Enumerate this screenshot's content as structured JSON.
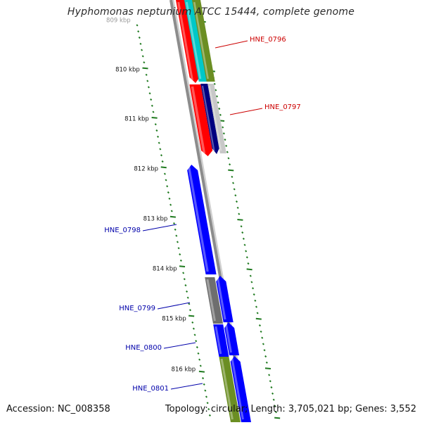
{
  "title": "Hyphomonas neptunium ATCC 15444, complete genome",
  "accession_text": "Accession: NC_008358",
  "summary_text": "Topology: circular; Length: 3,705,021 bp; Genes: 3,552",
  "colors": {
    "backbone": "#8c8c8c",
    "ticks": "#1f7a1f",
    "label_forward": "#cc0000",
    "label_reverse": "#0000aa"
  },
  "axis": {
    "unit": "kbp",
    "tick_labels": [
      "809 kbp",
      "810 kbp",
      "811 kbp",
      "812 kbp",
      "813 kbp",
      "814 kbp",
      "815 kbp",
      "816 kbp"
    ]
  },
  "gene_labels": [
    {
      "name": "HNE_0796",
      "strand": "forward"
    },
    {
      "name": "HNE_0797",
      "strand": "forward"
    },
    {
      "name": "HNE_0798",
      "strand": "reverse"
    },
    {
      "name": "HNE_0799",
      "strand": "reverse"
    },
    {
      "name": "HNE_0800",
      "strand": "reverse"
    },
    {
      "name": "HNE_0801",
      "strand": "reverse"
    }
  ],
  "features": [
    {
      "name": "feature-red-upper",
      "color": "#ff0000"
    },
    {
      "name": "feature-cyan",
      "color": "#00c8c8"
    },
    {
      "name": "feature-olive-upper",
      "color": "#6b8e23"
    },
    {
      "name": "feature-red-lower",
      "color": "#ff0000"
    },
    {
      "name": "feature-navy",
      "color": "#000080"
    },
    {
      "name": "feature-lightgray",
      "color": "#c8c8c8"
    },
    {
      "name": "feature-blue-0798",
      "color": "#0000ff"
    },
    {
      "name": "feature-gray-0799",
      "color": "#6e6e6e"
    },
    {
      "name": "feature-blue-0799",
      "color": "#0000ff"
    },
    {
      "name": "feature-blue-0800a",
      "color": "#0000ff"
    },
    {
      "name": "feature-blue-0800b",
      "color": "#0000ff"
    },
    {
      "name": "feature-olive-lower",
      "color": "#6b8e23"
    },
    {
      "name": "feature-blue-0801",
      "color": "#0000ff"
    }
  ]
}
